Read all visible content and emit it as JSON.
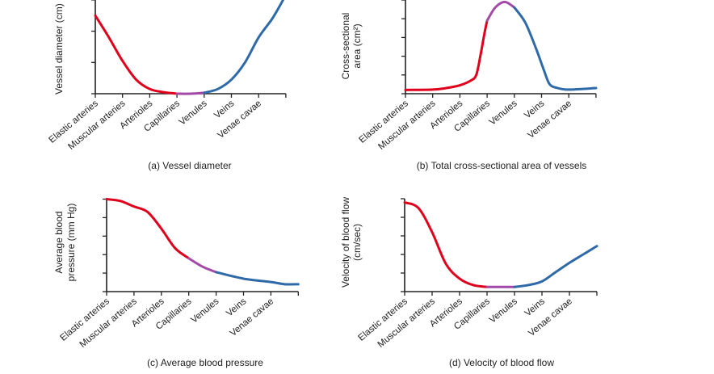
{
  "colors": {
    "arteries": "#e0001b",
    "capillaries": "#a34aa8",
    "veins": "#2f6aa8",
    "axis": "#222222"
  },
  "chart_data": [
    {
      "type": "line",
      "caption": "(a) Vessel diameter",
      "ylabel": [
        "Vessel diameter (cm)"
      ],
      "categories": [
        "Elastic arteries",
        "Muscular arteries",
        "Arterioles",
        "Capillaries",
        "Venules",
        "Veins",
        "Venae cavae"
      ],
      "y_tick_labels": "none",
      "grid": false,
      "x": [
        0,
        0.5,
        1,
        1.5,
        2,
        2.5,
        3,
        3.5,
        4,
        4.5,
        5,
        5.5,
        6,
        6.5,
        6.9
      ],
      "y": [
        2.5,
        1.8,
        1.05,
        0.45,
        0.15,
        0.05,
        0.0,
        0.0,
        0.03,
        0.15,
        0.45,
        1.0,
        1.8,
        2.4,
        3.0
      ],
      "segments": [
        {
          "from": 0,
          "to": 3,
          "color": "arteries"
        },
        {
          "from": 3,
          "to": 4,
          "color": "capillaries"
        },
        {
          "from": 4,
          "to": 7,
          "color": "veins"
        }
      ]
    },
    {
      "type": "line",
      "caption": "(b) Total cross-sectional area of vessels",
      "ylabel": [
        "Cross-sectional",
        "area (cm²)"
      ],
      "categories": [
        "Elastic arteries",
        "Muscular arteries",
        "Arterioles",
        "Capillaries",
        "Venules",
        "Veins",
        "Venae cavae"
      ],
      "y_tick_labels": "none",
      "grid": false,
      "x": [
        0,
        1,
        1.5,
        2,
        2.4,
        2.6,
        2.75,
        2.9,
        3,
        3.3,
        3.65,
        4,
        4.4,
        4.8,
        5.1,
        5.3,
        5.6,
        6,
        7
      ],
      "y": [
        0.2,
        0.22,
        0.3,
        0.45,
        0.7,
        1.0,
        2.0,
        3.2,
        3.9,
        4.6,
        4.9,
        4.6,
        3.8,
        2.4,
        1.2,
        0.5,
        0.3,
        0.22,
        0.3
      ],
      "segments": [
        {
          "from": 0,
          "to": 3,
          "color": "arteries"
        },
        {
          "from": 3,
          "to": 4,
          "color": "capillaries"
        },
        {
          "from": 4,
          "to": 7,
          "color": "veins"
        }
      ]
    },
    {
      "type": "line",
      "caption": "(c) Average blood pressure",
      "ylabel": [
        "Average blood",
        "pressure (mm Hg)"
      ],
      "categories": [
        "Elastic arteries",
        "Muscular arteries",
        "Arterioles",
        "Capillaries",
        "Venules",
        "Veins",
        "Venae cavae"
      ],
      "y_tick_labels": "none",
      "grid": false,
      "x": [
        0,
        0.5,
        1,
        1.5,
        2,
        2.5,
        3,
        3.5,
        4,
        5,
        6,
        6.5,
        7
      ],
      "y": [
        5.0,
        4.9,
        4.6,
        4.3,
        3.4,
        2.35,
        1.8,
        1.35,
        1.05,
        0.7,
        0.52,
        0.4,
        0.4
      ],
      "segments": [
        {
          "from": 0,
          "to": 3,
          "color": "arteries"
        },
        {
          "from": 3,
          "to": 4,
          "color": "capillaries"
        },
        {
          "from": 4,
          "to": 7,
          "color": "veins"
        }
      ]
    },
    {
      "type": "line",
      "caption": "(d) Velocity of blood flow",
      "ylabel": [
        "Velocity of blood flow",
        "(cm/sec)"
      ],
      "categories": [
        "Elastic arteries",
        "Muscular arteries",
        "Arterioles",
        "Capillaries",
        "Venules",
        "Veins",
        "Venae cavae"
      ],
      "y_tick_labels": "none",
      "grid": false,
      "x": [
        0,
        0.5,
        1,
        1.5,
        2,
        2.5,
        3,
        3.5,
        4,
        4.5,
        5,
        5.5,
        6,
        6.5,
        7
      ],
      "y": [
        4.8,
        4.5,
        3.2,
        1.5,
        0.7,
        0.35,
        0.25,
        0.25,
        0.25,
        0.35,
        0.55,
        1.05,
        1.55,
        2.0,
        2.45
      ],
      "segments": [
        {
          "from": 0,
          "to": 3,
          "color": "arteries"
        },
        {
          "from": 3,
          "to": 4,
          "color": "capillaries"
        },
        {
          "from": 4,
          "to": 7,
          "color": "veins"
        }
      ]
    }
  ]
}
